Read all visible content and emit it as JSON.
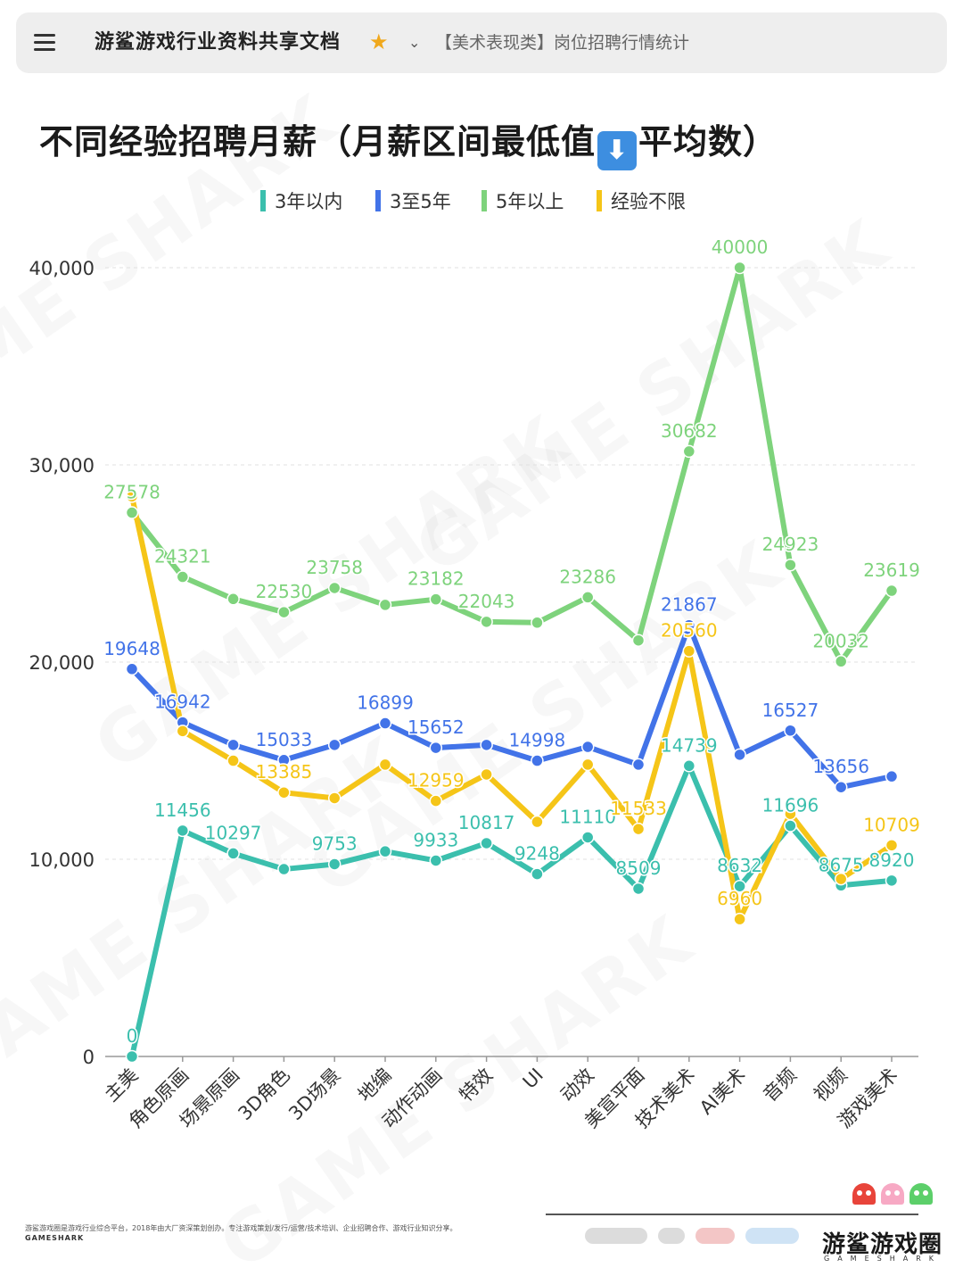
{
  "topbar": {
    "doc_title": "游鲨游戏行业资料共享文档",
    "breadcrumb": "【美术表现类】岗位招聘行情统计"
  },
  "title": {
    "before": "不同经验招聘月薪（月薪区间最低值",
    "emoji": "⬇",
    "after": "平均数）"
  },
  "chart_data": {
    "type": "line",
    "title": "不同经验招聘月薪（月薪区间最低值⬇️平均数）",
    "categories": [
      "主美",
      "角色原画",
      "场景原画",
      "3D角色",
      "3D场景",
      "地编",
      "动作动画",
      "特效",
      "UI",
      "动效",
      "美宣平面",
      "技术美术",
      "AI美术",
      "音频",
      "视频",
      "游戏美术"
    ],
    "ylim": [
      0,
      40000
    ],
    "yticks": [
      0,
      10000,
      20000,
      30000,
      40000
    ],
    "ytick_labels": [
      "0",
      "10,000",
      "20,000",
      "30,000",
      "40,000"
    ],
    "legend_position": "top-center",
    "series": [
      {
        "name": "3年以内",
        "color": "#3bbfad",
        "values": [
          0,
          11456,
          10297,
          9500,
          9753,
          10400,
          9933,
          10817,
          9248,
          11110,
          8509,
          14739,
          8632,
          11696,
          8675,
          8920
        ],
        "labeled": [
          0,
          1,
          2,
          4,
          6,
          7,
          8,
          9,
          10,
          11,
          12,
          13,
          14,
          15
        ]
      },
      {
        "name": "3至5年",
        "color": "#4273e8",
        "values": [
          19648,
          16942,
          15800,
          15033,
          15800,
          16899,
          15652,
          15800,
          14998,
          15700,
          14800,
          21867,
          15300,
          16527,
          13656,
          14200
        ],
        "labeled": [
          0,
          1,
          3,
          5,
          6,
          8,
          11,
          13,
          14
        ]
      },
      {
        "name": "5年以上",
        "color": "#7ed37c",
        "values": [
          27578,
          24321,
          23200,
          22530,
          23758,
          22900,
          23182,
          22043,
          22000,
          23286,
          21100,
          30682,
          40000,
          24923,
          20032,
          23619
        ],
        "labeled": [
          0,
          1,
          3,
          4,
          6,
          7,
          9,
          11,
          12,
          13,
          14,
          15
        ]
      },
      {
        "name": "经验不限",
        "color": "#f5c518",
        "values": [
          28400,
          16500,
          15000,
          13385,
          13100,
          14800,
          12959,
          14300,
          11900,
          14800,
          11533,
          20560,
          6960,
          12300,
          9000,
          10709
        ],
        "labeled": [
          3,
          6,
          10,
          11,
          12,
          15
        ]
      }
    ]
  },
  "footer": {
    "description": "游鲨游戏圈是游戏行业综合平台，2018年由大厂资深策划创办。专注游戏策划/发行/运营/技术培训、企业招聘合作、游戏行业知识分享。",
    "brand_small": "GAMESHARK",
    "brand_logo": "游鲨游戏圈",
    "brand_sub": "GAMESHARK",
    "ghost_colors": [
      "#e8443a",
      "#f7a9c4",
      "#5ccf6a"
    ]
  }
}
